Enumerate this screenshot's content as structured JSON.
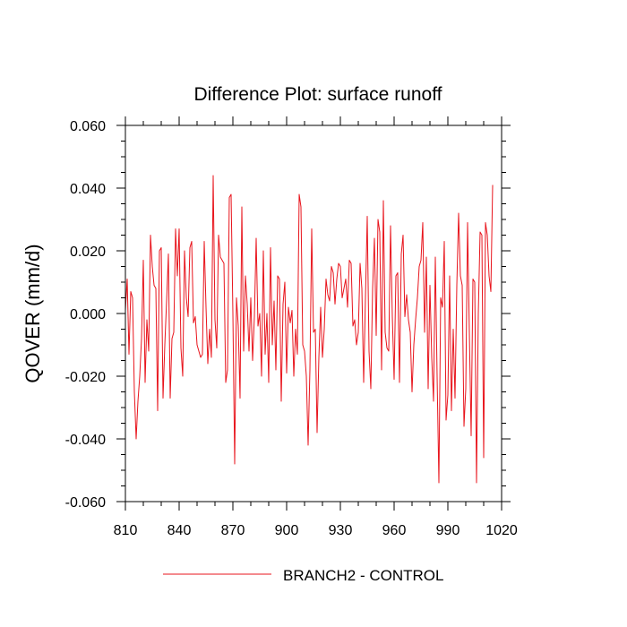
{
  "chart_data": {
    "type": "line",
    "title": "Difference Plot: surface runoff",
    "xlabel": "",
    "ylabel": "QOVER  (mm/d)",
    "xlim": [
      810,
      1020
    ],
    "ylim": [
      -0.06,
      0.06
    ],
    "x_ticks": [
      810,
      840,
      870,
      900,
      930,
      960,
      990,
      1020
    ],
    "x_tick_labels": [
      "810",
      "840",
      "870",
      "900",
      "930",
      "960",
      "990",
      "1020"
    ],
    "y_ticks": [
      -0.06,
      -0.04,
      -0.02,
      0.0,
      0.02,
      0.04,
      0.06
    ],
    "y_tick_labels": [
      "-0.060",
      "-0.040",
      "-0.020",
      "0.000",
      "0.020",
      "0.040",
      "0.060"
    ],
    "grid": false,
    "legend_position": "bottom-center",
    "series": [
      {
        "name": "BRANCH2 - CONTROL",
        "color": "#e8141c",
        "x_start": 810,
        "x_step": 1,
        "values": [
          0.001,
          0.011,
          -0.013,
          0.007,
          0.005,
          -0.025,
          -0.04,
          -0.028,
          -0.02,
          -0.008,
          0.017,
          -0.022,
          -0.002,
          -0.012,
          0.025,
          0.015,
          0.009,
          0.008,
          -0.031,
          0.02,
          0.021,
          -0.027,
          -0.01,
          0.004,
          0.019,
          -0.027,
          -0.008,
          -0.006,
          0.027,
          0.012,
          0.027,
          -0.011,
          -0.02,
          0.02,
          0.005,
          -0.001,
          0.021,
          0.023,
          -0.003,
          -0.001,
          -0.01,
          -0.012,
          -0.014,
          -0.013,
          0.023,
          0.002,
          -0.016,
          -0.005,
          -0.014,
          0.044,
          -0.002,
          -0.011,
          0.025,
          0.018,
          0.017,
          0.016,
          -0.022,
          -0.018,
          0.037,
          0.038,
          0.0,
          -0.048,
          0.005,
          -0.004,
          -0.027,
          0.034,
          -0.012,
          0.012,
          0.003,
          -0.012,
          0.005,
          -0.015,
          -0.001,
          0.024,
          -0.004,
          0.0,
          -0.02,
          0.02,
          -0.013,
          0.0,
          -0.022,
          0.021,
          -0.01,
          0.004,
          -0.018,
          0.012,
          0.011,
          -0.028,
          0.003,
          0.01,
          -0.019,
          0.002,
          -0.003,
          0.001,
          -0.02,
          -0.005,
          -0.013,
          0.038,
          0.034,
          -0.01,
          -0.012,
          -0.02,
          -0.042,
          -0.018,
          0.027,
          -0.006,
          -0.005,
          -0.038,
          -0.014,
          0.002,
          -0.014,
          -0.005,
          0.011,
          0.006,
          0.004,
          0.015,
          0.013,
          0.003,
          0.011,
          0.016,
          0.015,
          0.005,
          0.008,
          0.011,
          0.002,
          0.017,
          0.016,
          -0.004,
          -0.002,
          -0.01,
          -0.006,
          0.016,
          0.008,
          -0.022,
          0.005,
          0.031,
          -0.012,
          -0.024,
          0.008,
          0.024,
          -0.007,
          0.03,
          0.026,
          -0.018,
          0.036,
          -0.006,
          -0.011,
          -0.012,
          0.028,
          -0.001,
          -0.021,
          0.012,
          0.013,
          -0.022,
          0.019,
          0.025,
          -0.001,
          0.006,
          -0.002,
          -0.006,
          -0.025,
          -0.01,
          -0.002,
          0.005,
          0.015,
          0.017,
          0.029,
          -0.006,
          0.018,
          -0.024,
          0.009,
          -0.014,
          -0.028,
          0.018,
          -0.02,
          -0.054,
          0.005,
          0.002,
          0.023,
          -0.034,
          -0.026,
          0.012,
          -0.031,
          -0.005,
          -0.027,
          0.009,
          0.032,
          0.012,
          0.009,
          -0.036,
          -0.024,
          0.029,
          -0.006,
          -0.039,
          0.011,
          0.01,
          -0.054,
          0.0,
          0.026,
          0.025,
          -0.046,
          0.029,
          0.025,
          0.012,
          0.007,
          0.041
        ]
      }
    ]
  }
}
